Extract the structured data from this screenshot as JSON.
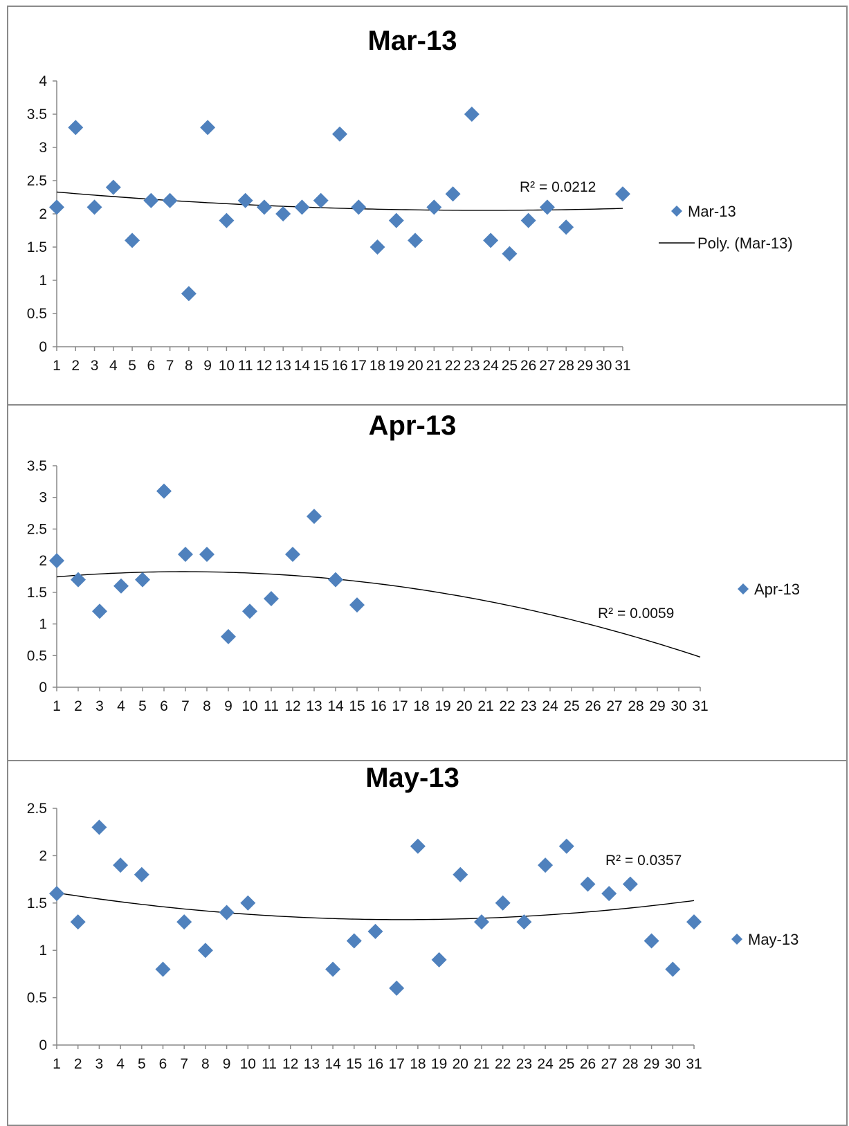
{
  "colors": {
    "marker": "#4F81BD",
    "trend": "#000000",
    "axis": "#888888",
    "border": "#8a8a8a"
  },
  "chart_data": [
    {
      "type": "scatter",
      "title": "Mar-13",
      "xlim": [
        1,
        31
      ],
      "ylim": [
        0,
        4
      ],
      "x_ticks": [
        1,
        2,
        3,
        4,
        5,
        6,
        7,
        8,
        9,
        10,
        11,
        12,
        13,
        14,
        15,
        16,
        17,
        18,
        19,
        20,
        21,
        22,
        23,
        24,
        25,
        26,
        27,
        28,
        29,
        30,
        31
      ],
      "y_ticks": [
        0,
        0.5,
        1,
        1.5,
        2,
        2.5,
        3,
        3.5,
        4
      ],
      "series": [
        {
          "name": "Mar-13",
          "marker": "diamond",
          "x": [
            1,
            2,
            3,
            4,
            5,
            6,
            7,
            8,
            9,
            10,
            11,
            12,
            13,
            14,
            15,
            16,
            17,
            18,
            19,
            20,
            21,
            22,
            23,
            24,
            25,
            26,
            27,
            28,
            31
          ],
          "y": [
            2.1,
            3.3,
            2.1,
            2.4,
            1.6,
            2.2,
            2.2,
            0.8,
            3.3,
            1.9,
            2.2,
            2.1,
            2.0,
            2.1,
            2.2,
            3.2,
            2.1,
            1.5,
            1.9,
            1.6,
            2.1,
            2.3,
            3.5,
            1.6,
            1.4,
            1.9,
            2.1,
            1.8,
            2.3
          ]
        }
      ],
      "trendline": {
        "name": "Poly. (Mar-13)",
        "type": "polynomial",
        "order": 2,
        "x_range": [
          1,
          31
        ],
        "r2_label": "R² = 0.0212"
      },
      "legend": {
        "position": "right",
        "entries": [
          "Mar-13",
          "Poly. (Mar-13)"
        ]
      },
      "grid": false
    },
    {
      "type": "scatter",
      "title": "Apr-13",
      "xlim": [
        1,
        31
      ],
      "ylim": [
        0,
        3.5
      ],
      "x_ticks": [
        1,
        2,
        3,
        4,
        5,
        6,
        7,
        8,
        9,
        10,
        11,
        12,
        13,
        14,
        15,
        16,
        17,
        18,
        19,
        20,
        21,
        22,
        23,
        24,
        25,
        26,
        27,
        28,
        29,
        30,
        31
      ],
      "y_ticks": [
        0,
        0.5,
        1,
        1.5,
        2,
        2.5,
        3,
        3.5
      ],
      "series": [
        {
          "name": "Apr-13",
          "marker": "diamond",
          "x": [
            1,
            2,
            3,
            4,
            5,
            6,
            7,
            8,
            9,
            10,
            11,
            12,
            13,
            14,
            15
          ],
          "y": [
            2.0,
            1.7,
            1.2,
            1.6,
            1.7,
            3.1,
            2.1,
            2.1,
            0.8,
            1.2,
            1.4,
            2.1,
            2.7,
            1.7,
            1.3
          ]
        }
      ],
      "trendline": {
        "type": "polynomial",
        "order": 2,
        "x_range": [
          1,
          31
        ],
        "r2_label": "R² = 0.0059"
      },
      "legend": {
        "position": "right",
        "entries": [
          "Apr-13"
        ]
      },
      "grid": false
    },
    {
      "type": "scatter",
      "title": "May-13",
      "xlim": [
        1,
        31
      ],
      "ylim": [
        0,
        2.5
      ],
      "x_ticks": [
        1,
        2,
        3,
        4,
        5,
        6,
        7,
        8,
        9,
        10,
        11,
        12,
        13,
        14,
        15,
        16,
        17,
        18,
        19,
        20,
        21,
        22,
        23,
        24,
        25,
        26,
        27,
        28,
        29,
        30,
        31
      ],
      "y_ticks": [
        0,
        0.5,
        1,
        1.5,
        2,
        2.5
      ],
      "series": [
        {
          "name": "May-13",
          "marker": "diamond",
          "x": [
            1,
            2,
            3,
            4,
            5,
            6,
            7,
            8,
            9,
            10,
            14,
            15,
            16,
            17,
            18,
            19,
            20,
            21,
            22,
            23,
            24,
            25,
            26,
            27,
            28,
            29,
            30,
            31
          ],
          "y": [
            1.6,
            1.3,
            2.3,
            1.9,
            1.8,
            0.8,
            1.3,
            1.0,
            1.4,
            1.5,
            0.8,
            1.1,
            1.2,
            0.6,
            2.1,
            0.9,
            1.8,
            1.3,
            1.5,
            1.3,
            1.9,
            2.1,
            1.7,
            1.6,
            1.7,
            1.1,
            0.8,
            1.3
          ]
        }
      ],
      "trendline": {
        "type": "polynomial",
        "order": 2,
        "x_range": [
          1,
          31
        ],
        "r2_label": "R² = 0.0357"
      },
      "legend": {
        "position": "right",
        "entries": [
          "May-13"
        ]
      },
      "grid": false
    }
  ]
}
